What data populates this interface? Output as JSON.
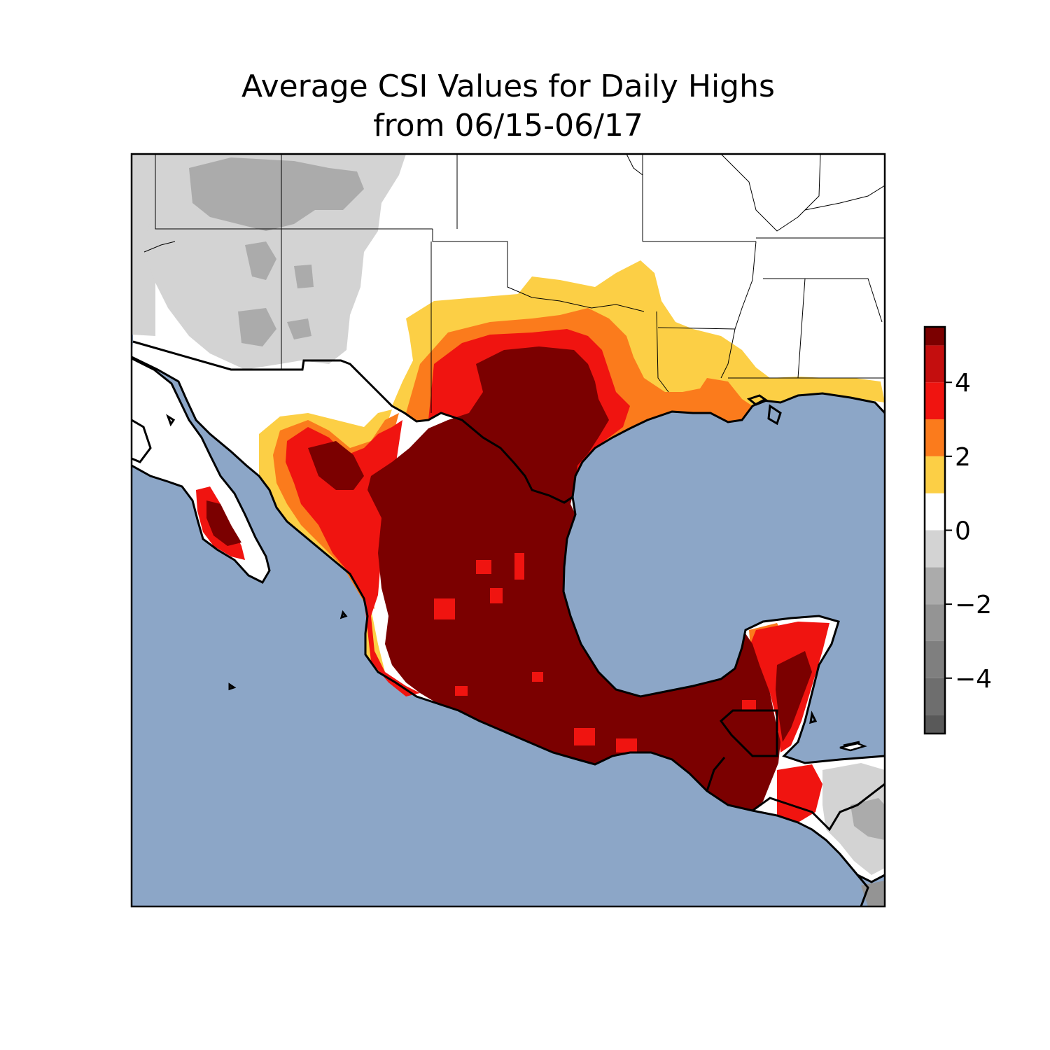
{
  "title_line1": "Average CSI Values for Daily Highs",
  "title_line2": "from 06/15-06/17",
  "map": {
    "ocean_color": "#8ca6c7",
    "land_border_color": "#000000",
    "region": "Southern United States, Mexico and northern Central America"
  },
  "colorbar": {
    "range": [
      -5.5,
      5.5
    ],
    "bands": [
      {
        "from": -5.5,
        "to": -5,
        "color": "#595959"
      },
      {
        "from": -5,
        "to": -4,
        "color": "#6e6e6e"
      },
      {
        "from": -4,
        "to": -3,
        "color": "#7f7f7f"
      },
      {
        "from": -3,
        "to": -2,
        "color": "#949494"
      },
      {
        "from": -2,
        "to": -1,
        "color": "#ababab"
      },
      {
        "from": -1,
        "to": 0,
        "color": "#d3d3d3"
      },
      {
        "from": 0,
        "to": 1,
        "color": "#ffffff"
      },
      {
        "from": 1,
        "to": 2,
        "color": "#fccf45"
      },
      {
        "from": 2,
        "to": 3,
        "color": "#fb7b1c"
      },
      {
        "from": 3,
        "to": 4,
        "color": "#f01410"
      },
      {
        "from": 4,
        "to": 5,
        "color": "#c40e0e"
      },
      {
        "from": 5,
        "to": 5.5,
        "color": "#7b0000"
      }
    ],
    "ticks": [
      {
        "value": 4,
        "label": "4"
      },
      {
        "value": 2,
        "label": "2"
      },
      {
        "value": 0,
        "label": "0"
      },
      {
        "value": -2,
        "label": "−2"
      },
      {
        "value": -4,
        "label": "−4"
      }
    ]
  }
}
